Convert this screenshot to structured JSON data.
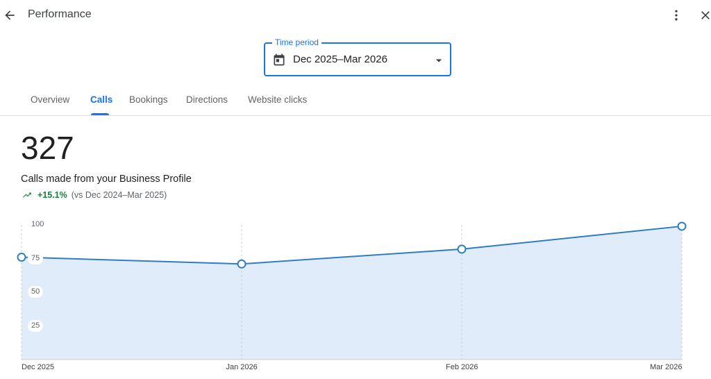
{
  "header": {
    "title": "Performance",
    "back_icon": "arrow-back-icon",
    "more_icon": "more-vert-icon",
    "close_icon": "close-icon"
  },
  "time_period": {
    "label": "Time period",
    "value": "Dec 2025–Mar 2026",
    "icon": "calendar-icon"
  },
  "tabs": [
    {
      "label": "Overview",
      "active": false
    },
    {
      "label": "Calls",
      "active": true
    },
    {
      "label": "Bookings",
      "active": false
    },
    {
      "label": "Directions",
      "active": false
    },
    {
      "label": "Website clicks",
      "active": false
    }
  ],
  "summary": {
    "total": "327",
    "description": "Calls made from your Business Profile",
    "change": "+15.1%",
    "comparison": "(vs Dec 2024–Mar 2025)",
    "trend_icon": "trending-up-icon"
  },
  "colors": {
    "accent": "#1a73e8",
    "line": "#2f7cc4",
    "area": "#e1ecfb",
    "positive": "#188038"
  },
  "chart_data": {
    "type": "area",
    "categories": [
      "Dec 2025",
      "Jan 2026",
      "Feb 2026",
      "Mar 2026"
    ],
    "values": [
      76,
      71,
      82,
      99
    ],
    "y_ticks": [
      "100",
      "75",
      "50",
      "25"
    ],
    "ylim": [
      0,
      100
    ],
    "grid": "vertical-dashed"
  }
}
